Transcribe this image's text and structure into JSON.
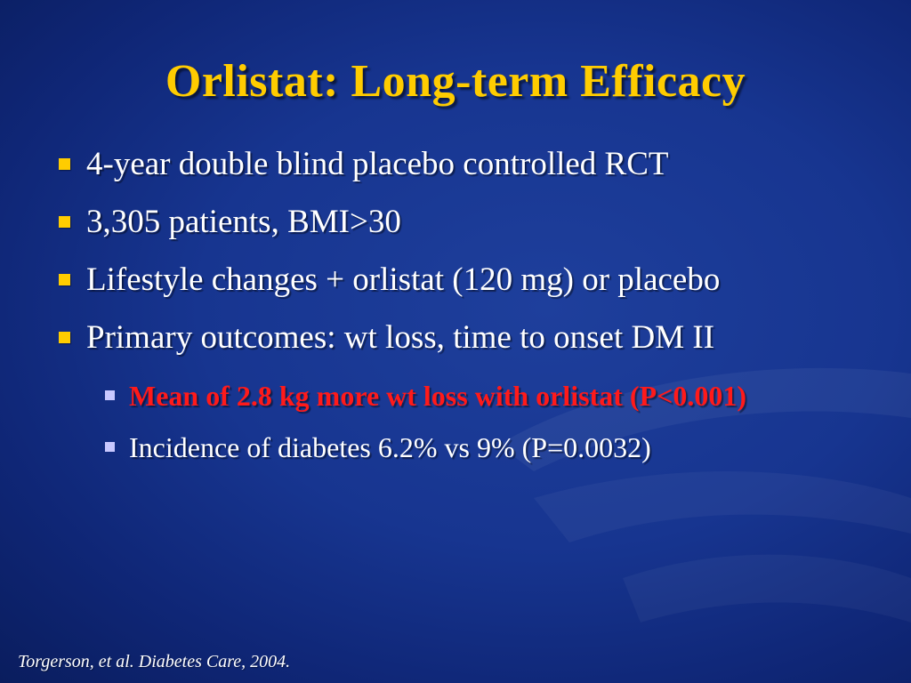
{
  "slide": {
    "title": "Orlistat:  Long-term Efficacy",
    "bullets": [
      "4-year double blind placebo controlled RCT",
      "3,305 patients, BMI>30",
      "Lifestyle changes + orlistat (120 mg) or placebo",
      "Primary outcomes:  wt loss, time to onset DM II"
    ],
    "sub_bullets": [
      "Mean of 2.8 kg more wt loss with orlistat (P<0.001)",
      "Incidence of diabetes 6.2% vs 9% (P=0.0032)"
    ],
    "citation": "Torgerson, et al. Diabetes Care, 2004."
  },
  "colors": {
    "background": "#173590",
    "title": "#ffcc00",
    "bullet_marker": "#ffcc00",
    "sub_bullet_marker": "#c8c8ff",
    "highlight_text": "#ff1a1a",
    "body_text": "#ffffff"
  }
}
